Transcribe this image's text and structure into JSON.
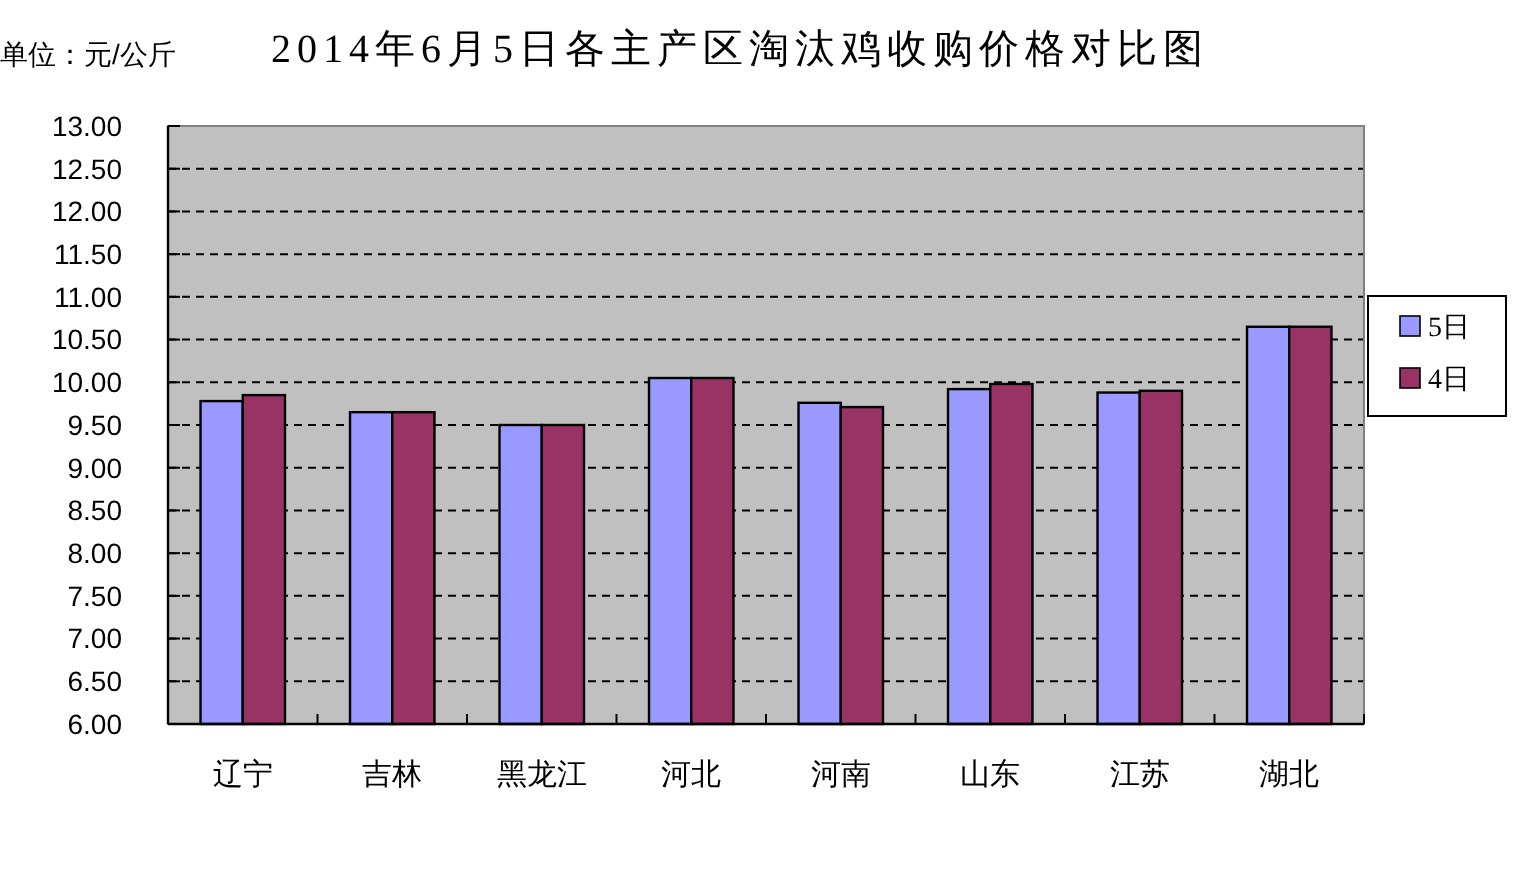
{
  "chart_data": {
    "type": "bar",
    "title": "2014年6月5日各主产区淘汰鸡收购价格对比图",
    "ylabel": "单位：元/公斤",
    "categories": [
      "辽宁",
      "吉林",
      "黑龙江",
      "河北",
      "河南",
      "山东",
      "江苏",
      "湖北"
    ],
    "series": [
      {
        "name": "5日",
        "color": "#9999ff",
        "values": [
          9.78,
          9.65,
          9.5,
          10.05,
          9.76,
          9.92,
          9.88,
          10.65
        ]
      },
      {
        "name": "4日",
        "color": "#993366",
        "values": [
          9.85,
          9.65,
          9.5,
          10.05,
          9.71,
          9.98,
          9.9,
          10.65
        ]
      }
    ],
    "ylim": [
      6,
      13
    ],
    "yticks": [
      {
        "value": 6,
        "label": "6.00"
      },
      {
        "value": 6.5,
        "label": "6.50"
      },
      {
        "value": 7,
        "label": "7.00"
      },
      {
        "value": 7.5,
        "label": "7.50"
      },
      {
        "value": 8,
        "label": "8.00"
      },
      {
        "value": 8.5,
        "label": "8.50"
      },
      {
        "value": 9,
        "label": "9.00"
      },
      {
        "value": 9.5,
        "label": "9.50"
      },
      {
        "value": 10,
        "label": "10.00"
      },
      {
        "value": 10.5,
        "label": "10.50"
      },
      {
        "value": 11,
        "label": "11.00"
      },
      {
        "value": 11.5,
        "label": "11.50"
      },
      {
        "value": 12,
        "label": "12.00"
      },
      {
        "value": 12.5,
        "label": "12.50"
      },
      {
        "value": 13,
        "label": "13.00"
      }
    ],
    "grid": "y",
    "legend": "right"
  }
}
